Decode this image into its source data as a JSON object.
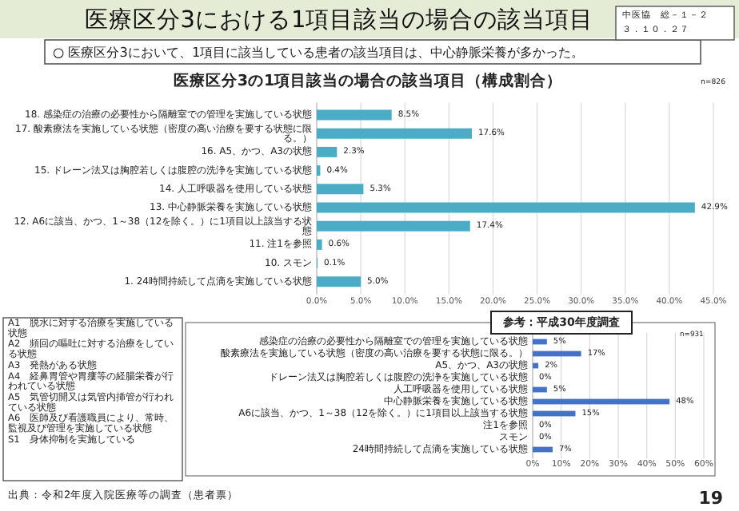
{
  "chart_data": [
    {
      "type": "bar",
      "orientation": "horizontal",
      "title": "医療区分3における1項目該当の場合の該当項目",
      "subtitle": "○ 医療区分3において、1項目に該当している患者の該当項目は、中心静脈栄養が多かった。",
      "categories": [
        "18. 感染症の治療の必要性から隔離室での管理を実施している状態",
        "17. 酸素療法を実施している状態（密度の高い治療を要する状態に限る。）",
        "16. A5、かつ、A3の状態",
        "15. ドレーン法又は胸腔若しくは腹腔の洗浄を実施している状態",
        "14. 人工呼吸器を使用している状態",
        "13. 中心静脈栄養を実施している状態",
        "12. A6に該当、かつ、1～38（12を除く。）に1項目以上該当する状態",
        "11. 注1を参照",
        "10. スモン",
        "1. 24時間持続して点滴を実施している状態"
      ],
      "values": [
        8.5,
        17.6,
        2.3,
        0.4,
        5.3,
        42.9,
        17.4,
        0.6,
        0.1,
        5.0
      ],
      "value_labels": [
        "8.5%",
        "17.6%",
        "2.3%",
        "0.4%",
        "5.3%",
        "42.9%",
        "17.4%",
        "0.6%",
        "0.1%",
        "5.0%"
      ],
      "color": "#4bacc6",
      "xlim": [
        0,
        45
      ],
      "xticks": [
        {
          "value": 0,
          "label": "0.0%"
        },
        {
          "value": 5,
          "label": "5.0%"
        },
        {
          "value": 10,
          "label": "10.0%"
        },
        {
          "value": 15,
          "label": "15.0%"
        },
        {
          "value": 20,
          "label": "20.0%"
        },
        {
          "value": 25,
          "label": "25.0%"
        },
        {
          "value": 30,
          "label": "30.0%"
        },
        {
          "value": 35,
          "label": "35.0%"
        },
        {
          "value": 40,
          "label": "40.0%"
        },
        {
          "value": 45,
          "label": "45.0%"
        }
      ],
      "grid": "x",
      "annotations": [
        "医療区分3の1項目該当の場合の該当項目（構成割合）",
        "n=826",
        "中医協　総－１－２",
        "３．１０．２７",
        "A1　脱水に対する治療を実施している状態",
        "A2　頻回の嘔吐に対する治療をしている状態",
        "A3　発熱がある状態",
        "A4　経鼻胃管や胃瘻等の経腸栄養が行われている状態",
        "A5　気管切開又は気管内挿管が行われている状態",
        "A6　医師及び看護職員により、常時、監視及び管理を実施している状態",
        "S1　身体抑制を実施している",
        "出典：令和2年度入院医療等の調査（患者票）",
        "19"
      ]
    },
    {
      "type": "bar",
      "orientation": "horizontal",
      "title": "参考：平成30年度調査",
      "categories": [
        "感染症の治療の必要性から隔離室での管理を実施している状態",
        "酸素療法を実施している状態（密度の高い治療を要する状態に限る。）",
        "A5、かつ、A3の状態",
        "ドレーン法又は胸腔若しくは腹腔の洗浄を実施している状態",
        "人工呼吸器を使用している状態",
        "中心静脈栄養を実施している状態",
        "A6に該当、かつ、1～38（12を除く。）に1項目以上該当する状態",
        "注1を参照",
        "スモン",
        "24時間持続して点滴を実施している状態"
      ],
      "values": [
        5,
        17,
        2,
        0,
        5,
        48,
        15,
        0,
        0,
        7
      ],
      "value_labels": [
        "5%",
        "17%",
        "2%",
        "0%",
        "5%",
        "48%",
        "15%",
        "0%",
        "0%",
        "7%"
      ],
      "color": "#4472c4",
      "xlim": [
        0,
        60
      ],
      "xticks": [
        {
          "value": 0,
          "label": "0%"
        },
        {
          "value": 10,
          "label": "10%"
        },
        {
          "value": 20,
          "label": "20%"
        },
        {
          "value": 30,
          "label": "30%"
        },
        {
          "value": 40,
          "label": "40%"
        },
        {
          "value": 50,
          "label": "50%"
        },
        {
          "value": 60,
          "label": "60%"
        }
      ],
      "grid": "x",
      "annotations": [
        "n=931"
      ]
    }
  ]
}
